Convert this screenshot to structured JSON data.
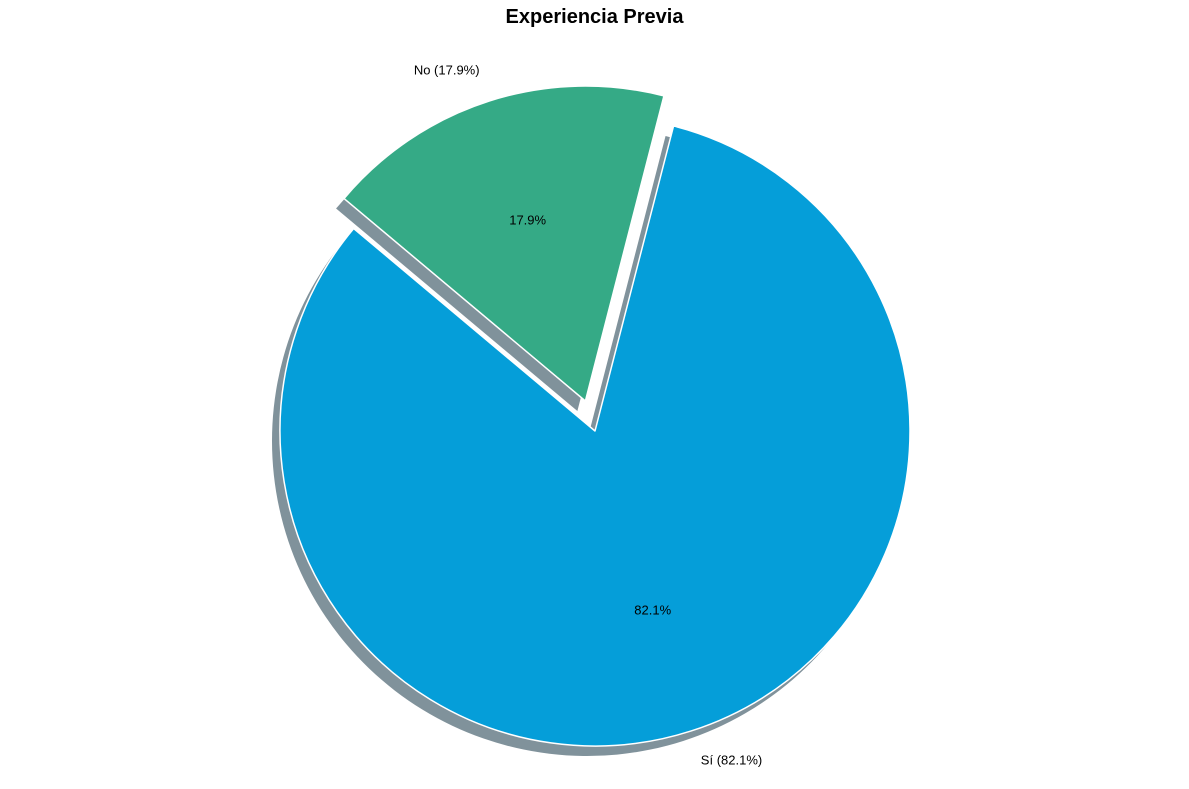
{
  "chart_data": {
    "type": "pie",
    "title": "Experiencia Previa",
    "slices": [
      {
        "label": "Sí (82.1%)",
        "category": "Sí",
        "value": 82.1,
        "pct_text": "82.1%",
        "color": "#059ED9",
        "exploded": false
      },
      {
        "label": "No (17.9%)",
        "category": "No",
        "value": 17.9,
        "pct_text": "17.9%",
        "color": "#35AA86",
        "exploded": true
      }
    ],
    "start_angle_deg": 140,
    "direction": "counterclockwise",
    "shadow": true,
    "edge_color": "#ffffff",
    "legend": false
  }
}
